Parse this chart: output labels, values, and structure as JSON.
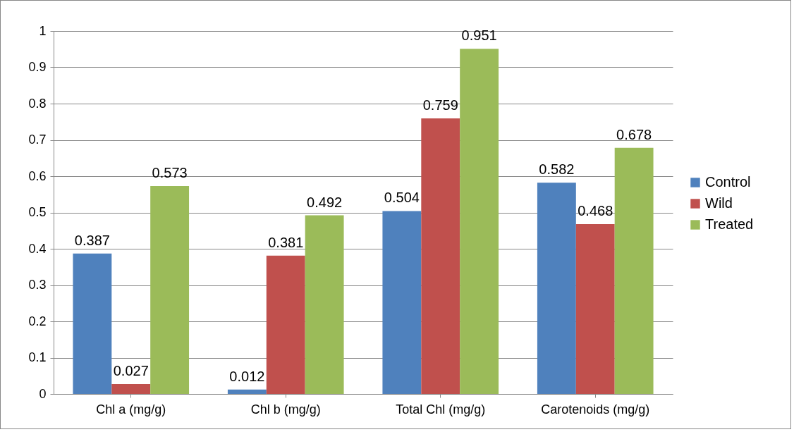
{
  "chart_data": {
    "type": "bar",
    "categories": [
      "Chl a (mg/g)",
      "Chl b (mg/g)",
      "Total Chl (mg/g)",
      "Carotenoids (mg/g)"
    ],
    "series": [
      {
        "name": "Control",
        "color": "#4f81bd",
        "values": [
          0.387,
          0.012,
          0.504,
          0.582
        ]
      },
      {
        "name": "Wild",
        "color": "#c0504d",
        "values": [
          0.027,
          0.381,
          0.759,
          0.468
        ]
      },
      {
        "name": "Treated",
        "color": "#9bbb59",
        "values": [
          0.573,
          0.492,
          0.951,
          0.678
        ]
      }
    ],
    "ylim": [
      0,
      1
    ],
    "yticks": [
      0,
      0.1,
      0.2,
      0.3,
      0.4,
      0.5,
      0.6,
      0.7,
      0.8,
      0.9,
      1
    ],
    "grid": "y",
    "legend": "right",
    "data_labels": true
  }
}
